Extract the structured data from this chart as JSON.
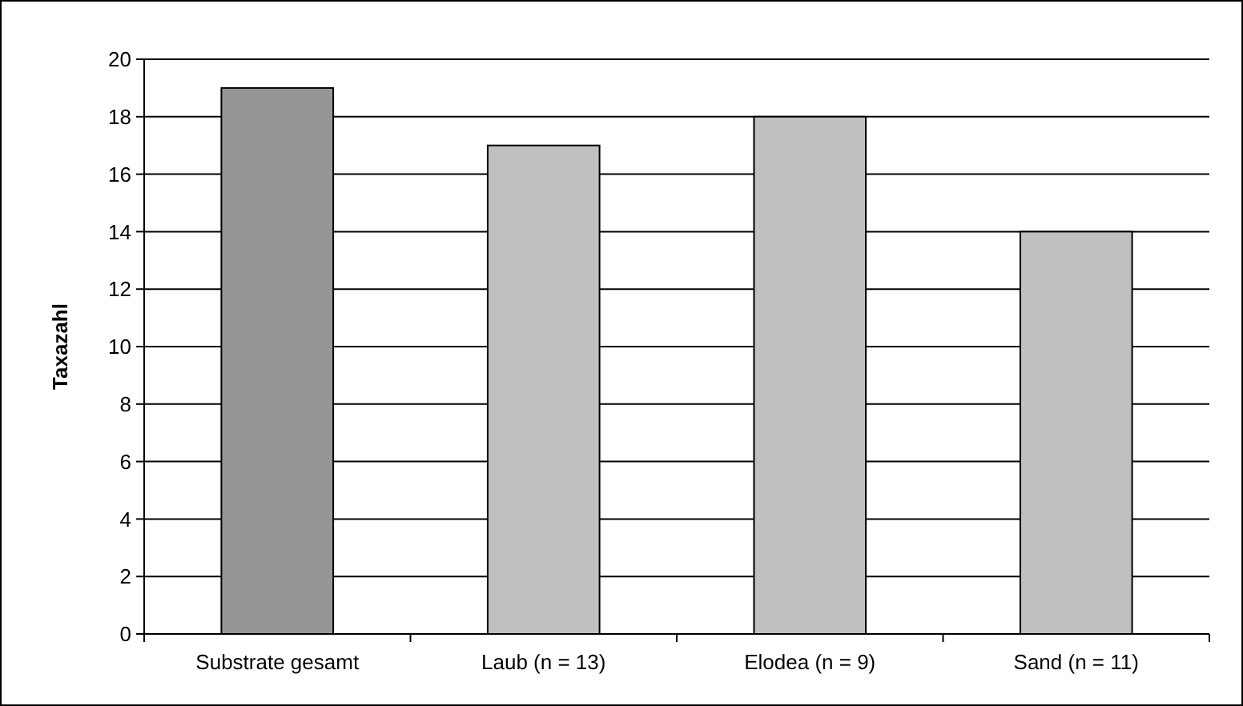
{
  "chart_data": {
    "type": "bar",
    "ylabel": "Taxazahl",
    "categories": [
      "Substrate gesamt",
      "Laub (n = 13)",
      "Elodea (n = 9)",
      "Sand (n = 11)"
    ],
    "values": [
      19,
      17,
      18,
      14
    ],
    "colors": [
      "#969696",
      "#c0c0c0",
      "#c0c0c0",
      "#c0c0c0"
    ],
    "ylim": [
      0,
      20
    ],
    "yticks": [
      0,
      2,
      4,
      6,
      8,
      10,
      12,
      14,
      16,
      18,
      20
    ],
    "grid": "y"
  }
}
